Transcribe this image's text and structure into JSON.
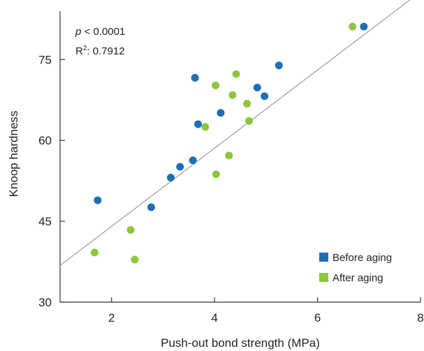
{
  "chart_data": {
    "type": "scatter",
    "xlabel": "Push-out bond strength (MPa)",
    "ylabel": "Knoop hardness",
    "xlim": [
      1,
      8
    ],
    "ylim": [
      30,
      85
    ],
    "xticks": [
      "2",
      "4",
      "6",
      "8"
    ],
    "yticks": [
      "30",
      "45",
      "60",
      "75"
    ],
    "annotation": {
      "p_symbol": "p",
      "p_text": " < 0.0001",
      "r2_label": "R",
      "r2_sup": "2",
      "r2_value": ": 0.7912"
    },
    "legend_position": "bottom-right",
    "series": [
      {
        "name": "Before aging",
        "color": "#1f6fb4",
        "points": [
          [
            1.73,
            48.9
          ],
          [
            2.77,
            47.6
          ],
          [
            3.15,
            53.1
          ],
          [
            3.33,
            55.1
          ],
          [
            3.58,
            56.3
          ],
          [
            3.62,
            71.6
          ],
          [
            3.68,
            63.0
          ],
          [
            4.12,
            65.1
          ],
          [
            4.83,
            69.8
          ],
          [
            4.97,
            68.2
          ],
          [
            5.25,
            73.9
          ],
          [
            6.9,
            81.1
          ]
        ]
      },
      {
        "name": "After aging",
        "color": "#8cc63f",
        "points": [
          [
            1.67,
            39.2
          ],
          [
            2.37,
            43.4
          ],
          [
            2.45,
            37.9
          ],
          [
            3.82,
            62.5
          ],
          [
            4.02,
            70.2
          ],
          [
            4.03,
            53.7
          ],
          [
            4.28,
            57.2
          ],
          [
            4.35,
            68.4
          ],
          [
            4.42,
            72.3
          ],
          [
            4.63,
            66.8
          ],
          [
            4.67,
            63.6
          ],
          [
            6.68,
            81.1
          ]
        ]
      }
    ],
    "trendline": {
      "x": [
        1,
        7.8
      ],
      "y": [
        36.8,
        86.1
      ]
    }
  }
}
